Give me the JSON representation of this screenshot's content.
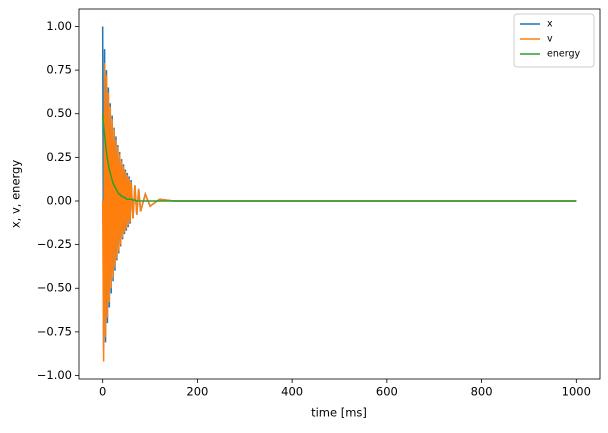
{
  "chart_data": {
    "type": "line",
    "xlabel": "time [ms]",
    "ylabel": "x, v, energy",
    "x": [
      0,
      2,
      4,
      6,
      8,
      10,
      12,
      14,
      16,
      18,
      20,
      22,
      24,
      26,
      28,
      30,
      32,
      34,
      36,
      38,
      40,
      42,
      44,
      46,
      48,
      50,
      52,
      54,
      56,
      58,
      60,
      64,
      68,
      72,
      76,
      80,
      90,
      100,
      120,
      150,
      200,
      300,
      400,
      500,
      600,
      700,
      800,
      900,
      1000
    ],
    "series": [
      {
        "name": "x",
        "color": "#1f77b4",
        "values": [
          1.0,
          -0.85,
          0.87,
          -0.81,
          0.75,
          -0.7,
          0.65,
          -0.61,
          0.56,
          -0.53,
          0.49,
          -0.46,
          0.42,
          -0.4,
          0.37,
          -0.34,
          0.32,
          -0.3,
          0.28,
          -0.26,
          0.24,
          -0.22,
          0.21,
          -0.19,
          0.18,
          -0.17,
          0.16,
          -0.15,
          0.14,
          -0.13,
          0.12,
          -0.1,
          0.09,
          -0.08,
          0.07,
          -0.06,
          0.04,
          -0.03,
          0.01,
          0,
          0,
          0,
          0,
          0,
          0,
          0,
          0,
          0,
          0
        ]
      },
      {
        "name": "v",
        "color": "#ff7f0e",
        "values": [
          0,
          -0.92,
          0.79,
          -0.78,
          0.72,
          -0.67,
          0.62,
          -0.58,
          0.54,
          -0.5,
          0.47,
          -0.44,
          0.41,
          -0.38,
          0.35,
          -0.33,
          0.31,
          -0.29,
          0.27,
          -0.25,
          0.23,
          -0.21,
          0.2,
          -0.18,
          0.17,
          -0.16,
          0.15,
          -0.14,
          0.13,
          -0.12,
          0.11,
          -0.1,
          0.09,
          -0.08,
          0.07,
          -0.06,
          0.04,
          -0.03,
          0.01,
          0,
          0,
          0,
          0,
          0,
          0,
          0,
          0,
          0,
          0
        ]
      },
      {
        "name": "energy",
        "color": "#2ca02c",
        "values": [
          0.5,
          0.43,
          0.38,
          0.33,
          0.28,
          0.24,
          0.21,
          0.18,
          0.16,
          0.14,
          0.12,
          0.1,
          0.09,
          0.08,
          0.07,
          0.06,
          0.05,
          0.04,
          0.04,
          0.03,
          0.03,
          0.025,
          0.02,
          0.02,
          0.02,
          0.01,
          0.01,
          0.01,
          0.01,
          0.01,
          0.01,
          0.005,
          0.005,
          0,
          0,
          0,
          0,
          0,
          0,
          0,
          0,
          0,
          0,
          0,
          0,
          0,
          0,
          0,
          0
        ]
      }
    ],
    "xlim": [
      -50,
      1050
    ],
    "ylim": [
      -1.02,
      1.1
    ],
    "xticks": [
      0,
      200,
      400,
      600,
      800,
      1000
    ],
    "yticks": [
      {
        "value": 1,
        "label": "1.00"
      },
      {
        "value": 0.75,
        "label": "0.75"
      },
      {
        "value": 0.5,
        "label": "0.50"
      },
      {
        "value": 0.25,
        "label": "0.25"
      },
      {
        "value": 0,
        "label": "0.00"
      },
      {
        "value": -0.25,
        "label": "−0.25"
      },
      {
        "value": -0.5,
        "label": "−0.50"
      },
      {
        "value": -0.75,
        "label": "−0.75"
      },
      {
        "value": -1,
        "label": "−1.00"
      }
    ],
    "grid": false,
    "legend": "upper right"
  }
}
